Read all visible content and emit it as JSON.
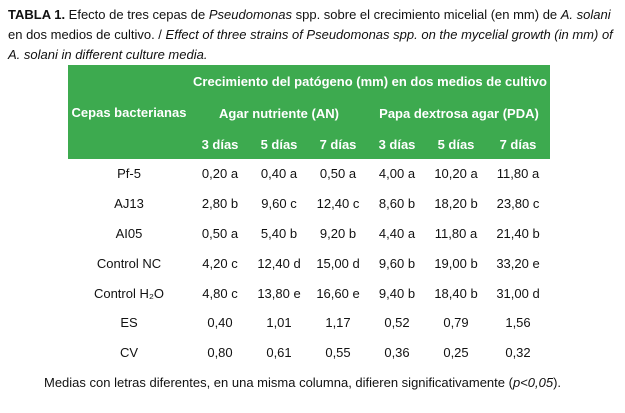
{
  "caption": {
    "label": "TABLA 1.",
    "part1": " Efecto de tres cepas de ",
    "genus": "Pseudomonas",
    "part2": " spp. sobre el crecimiento micelial (en mm) de ",
    "species": "A. solani",
    "part3": " en dos medios de cultivo. / ",
    "english": "Effect of three strains of Pseudomonas spp. on the mycelial growth (in mm) of A. solani in different culture media."
  },
  "table": {
    "header_cepas": "Cepas bacterianas",
    "header_group": "Crecimiento del patógeno (mm) en dos medios de cultivo",
    "media": [
      "Agar nutriente (AN)",
      "Papa dextrosa agar (PDA)"
    ],
    "days": [
      "3 días",
      "5 días",
      "7 días",
      "3 días",
      "5 días",
      "7 días"
    ],
    "rows": [
      {
        "cepa": "Pf-5",
        "values": [
          "0,20 a",
          "0,40 a",
          "0,50 a",
          "4,00 a",
          "10,20 a",
          "11,80 a"
        ]
      },
      {
        "cepa": "AJ13",
        "values": [
          "2,80 b",
          "9,60 c",
          "12,40 c",
          "8,60 b",
          "18,20 b",
          "23,80 c"
        ]
      },
      {
        "cepa": "AI05",
        "values": [
          "0,50 a",
          "5,40 b",
          "9,20 b",
          "4,40 a",
          "11,80 a",
          "21,40 b"
        ]
      },
      {
        "cepa": "Control NC",
        "values": [
          "4,20 c",
          "12,40 d",
          "15,00 d",
          "9,60 b",
          "19,00 b",
          "33,20 e"
        ]
      },
      {
        "cepa": "Control H₂O",
        "values": [
          "4,80 c",
          "13,80 e",
          "16,60 e",
          "9,40 b",
          "18,40 b",
          "31,00 d"
        ]
      },
      {
        "cepa": "ES",
        "values": [
          "0,40",
          "1,01",
          "1,17",
          "0,52",
          "0,79",
          "1,56"
        ]
      },
      {
        "cepa": "CV",
        "values": [
          "0,80",
          "0,61",
          "0,55",
          "0,36",
          "0,25",
          "0,32"
        ]
      }
    ]
  },
  "footnote": {
    "text": "Medias con letras diferentes, en una misma columna, difieren significativamente (",
    "pval": "p<0,05",
    "end": ")."
  },
  "colors": {
    "header_bg": "#3daa4f",
    "header_text": "#ffffff"
  }
}
